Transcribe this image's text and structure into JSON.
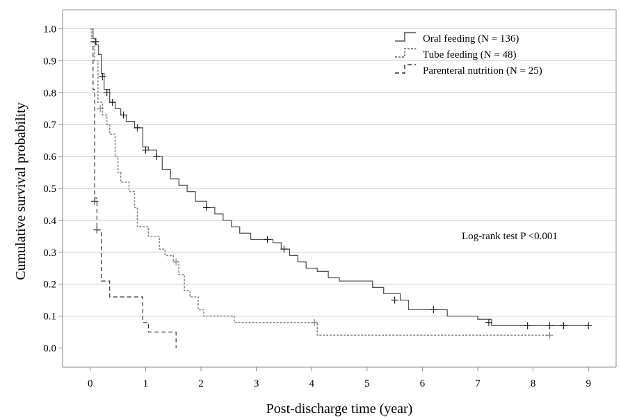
{
  "chart_data": {
    "type": "line",
    "title": "",
    "xlabel": "Post-discharge time (year)",
    "ylabel": "Cumulative survival probability",
    "xlim": [
      -0.5,
      9.5
    ],
    "ylim": [
      -0.06,
      1.06
    ],
    "xticks": [
      0,
      1,
      2,
      3,
      4,
      5,
      6,
      7,
      8,
      9
    ],
    "yticks": [
      0.0,
      0.1,
      0.2,
      0.3,
      0.4,
      0.5,
      0.6,
      0.7,
      0.8,
      0.9,
      1.0
    ],
    "xtick_labels": [
      "0",
      "1",
      "2",
      "3",
      "4",
      "5",
      "6",
      "7",
      "8",
      "9"
    ],
    "ytick_labels": [
      "0.0",
      "0.1",
      "0.2",
      "0.3",
      "0.4",
      "0.5",
      "0.6",
      "0.7",
      "0.8",
      "0.9",
      "1.0"
    ],
    "grid": "horizontal",
    "legend_position": "top-right",
    "annotation": "Log-rank test P <0.001",
    "series": [
      {
        "name": "Oral feeding (N = 136)",
        "color": "#555555",
        "dash": "solid",
        "steps": [
          [
            0,
            1.0
          ],
          [
            0.05,
            0.97
          ],
          [
            0.1,
            0.95
          ],
          [
            0.15,
            0.92
          ],
          [
            0.2,
            0.86
          ],
          [
            0.25,
            0.81
          ],
          [
            0.35,
            0.77
          ],
          [
            0.45,
            0.75
          ],
          [
            0.55,
            0.73
          ],
          [
            0.65,
            0.71
          ],
          [
            0.8,
            0.69
          ],
          [
            0.95,
            0.63
          ],
          [
            1.05,
            0.62
          ],
          [
            1.2,
            0.6
          ],
          [
            1.3,
            0.56
          ],
          [
            1.45,
            0.53
          ],
          [
            1.6,
            0.51
          ],
          [
            1.75,
            0.49
          ],
          [
            1.9,
            0.46
          ],
          [
            2.1,
            0.44
          ],
          [
            2.25,
            0.42
          ],
          [
            2.4,
            0.4
          ],
          [
            2.55,
            0.38
          ],
          [
            2.7,
            0.36
          ],
          [
            2.9,
            0.34
          ],
          [
            3.1,
            0.34
          ],
          [
            3.3,
            0.33
          ],
          [
            3.45,
            0.31
          ],
          [
            3.6,
            0.29
          ],
          [
            3.75,
            0.27
          ],
          [
            3.9,
            0.25
          ],
          [
            4.1,
            0.24
          ],
          [
            4.3,
            0.22
          ],
          [
            4.5,
            0.21
          ],
          [
            5.1,
            0.19
          ],
          [
            5.3,
            0.17
          ],
          [
            5.6,
            0.15
          ],
          [
            5.75,
            0.12
          ],
          [
            6.25,
            0.12
          ],
          [
            6.45,
            0.1
          ],
          [
            7.0,
            0.09
          ],
          [
            7.25,
            0.07
          ],
          [
            9.0,
            0.07
          ]
        ],
        "censored": [
          [
            0.1,
            0.96
          ],
          [
            0.22,
            0.85
          ],
          [
            0.3,
            0.8
          ],
          [
            0.4,
            0.77
          ],
          [
            0.6,
            0.73
          ],
          [
            0.85,
            0.69
          ],
          [
            1.0,
            0.62
          ],
          [
            1.2,
            0.6
          ],
          [
            2.1,
            0.44
          ],
          [
            3.2,
            0.34
          ],
          [
            3.5,
            0.31
          ],
          [
            5.5,
            0.15
          ],
          [
            6.2,
            0.12
          ],
          [
            7.2,
            0.08
          ],
          [
            7.9,
            0.07
          ],
          [
            8.3,
            0.07
          ],
          [
            8.55,
            0.07
          ],
          [
            9.0,
            0.07
          ]
        ]
      },
      {
        "name": "Tube feeding (N = 48)",
        "color": "#888888",
        "dash": "dotted",
        "steps": [
          [
            0,
            1.0
          ],
          [
            0.02,
            0.97
          ],
          [
            0.08,
            0.9
          ],
          [
            0.14,
            0.77
          ],
          [
            0.22,
            0.73
          ],
          [
            0.3,
            0.7
          ],
          [
            0.35,
            0.67
          ],
          [
            0.45,
            0.6
          ],
          [
            0.5,
            0.55
          ],
          [
            0.55,
            0.52
          ],
          [
            0.7,
            0.49
          ],
          [
            0.8,
            0.44
          ],
          [
            0.85,
            0.38
          ],
          [
            1.05,
            0.35
          ],
          [
            1.25,
            0.31
          ],
          [
            1.35,
            0.29
          ],
          [
            1.5,
            0.27
          ],
          [
            1.6,
            0.23
          ],
          [
            1.7,
            0.18
          ],
          [
            1.8,
            0.16
          ],
          [
            1.95,
            0.12
          ],
          [
            2.05,
            0.1
          ],
          [
            2.6,
            0.08
          ],
          [
            4.1,
            0.04
          ],
          [
            8.3,
            0.04
          ]
        ],
        "censored": [
          [
            0.18,
            0.75
          ],
          [
            1.55,
            0.27
          ],
          [
            4.05,
            0.08
          ],
          [
            8.3,
            0.04
          ]
        ]
      },
      {
        "name": "Parenteral nutrition (N = 25)",
        "color": "#333333",
        "dash": "dashed",
        "steps": [
          [
            0,
            0.96
          ],
          [
            0.05,
            0.81
          ],
          [
            0.08,
            0.47
          ],
          [
            0.12,
            0.37
          ],
          [
            0.2,
            0.21
          ],
          [
            0.35,
            0.16
          ],
          [
            0.95,
            0.08
          ],
          [
            1.05,
            0.05
          ],
          [
            1.55,
            0.0
          ],
          [
            1.55,
            0.0
          ]
        ],
        "censored": [
          [
            0.08,
            0.46
          ],
          [
            0.12,
            0.37
          ]
        ]
      }
    ]
  }
}
